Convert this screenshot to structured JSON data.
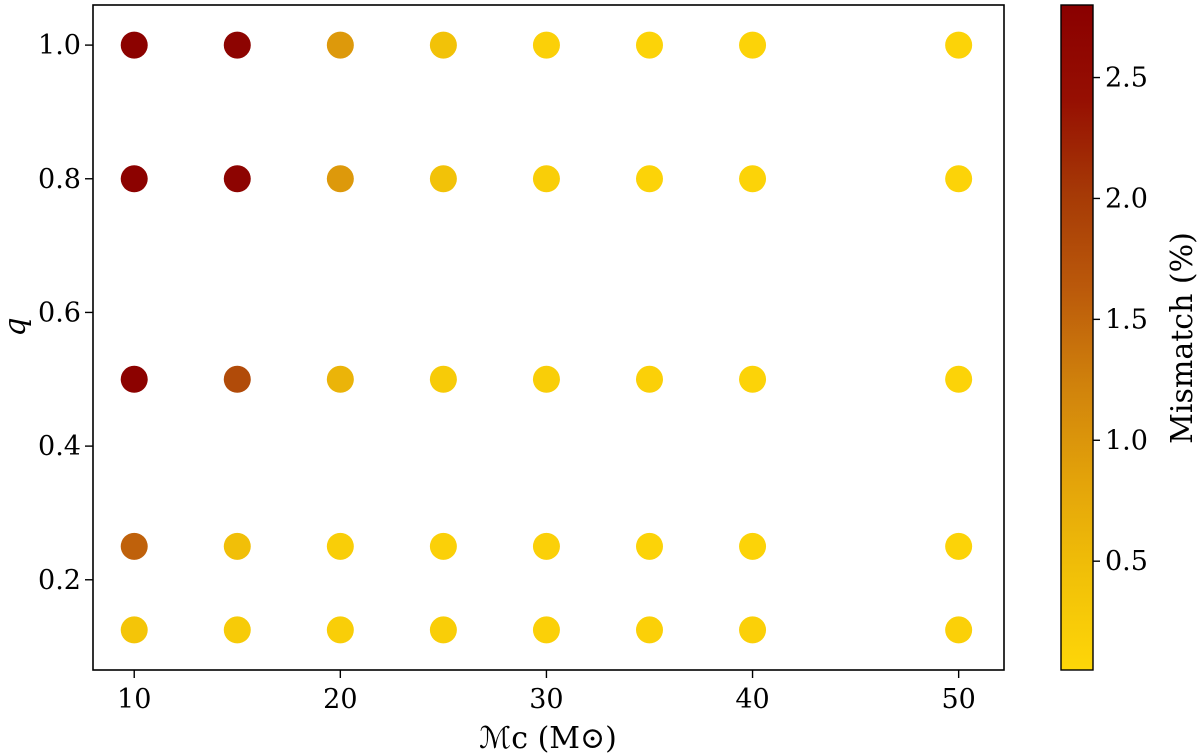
{
  "chart_data": {
    "type": "scatter",
    "title": "",
    "xlabel": "ℳc (M⊙)",
    "ylabel": "q",
    "xlim": [
      8,
      52.2
    ],
    "ylim": [
      0.065,
      1.06
    ],
    "xticks": [
      10,
      20,
      30,
      40,
      50
    ],
    "xtick_labels": [
      "10",
      "20",
      "30",
      "40",
      "50"
    ],
    "yticks": [
      0.2,
      0.4,
      0.6,
      0.8,
      1.0
    ],
    "ytick_labels": [
      "0.2",
      "0.4",
      "0.6",
      "0.8",
      "1.0"
    ],
    "grid": false,
    "colorbar": {
      "label": "Mismatch (%)",
      "range": [
        0.05,
        2.8
      ],
      "ticks": [
        0.5,
        1.0,
        1.5,
        2.0,
        2.5
      ],
      "tick_labels": [
        "0.5",
        "1.0",
        "1.5",
        "2.0",
        "2.5"
      ],
      "colors": [
        "#fed608",
        "#f1c008",
        "#e3a30a",
        "#d0820c",
        "#bb5a0b",
        "#a63a06",
        "#960f02",
        "#8a0000"
      ]
    },
    "points": [
      {
        "x": 10,
        "y": 1.0,
        "mismatch": 2.75
      },
      {
        "x": 15,
        "y": 1.0,
        "mismatch": 2.7
      },
      {
        "x": 20,
        "y": 1.0,
        "mismatch": 0.95
      },
      {
        "x": 25,
        "y": 1.0,
        "mismatch": 0.4
      },
      {
        "x": 30,
        "y": 1.0,
        "mismatch": 0.15
      },
      {
        "x": 35,
        "y": 1.0,
        "mismatch": 0.1
      },
      {
        "x": 40,
        "y": 1.0,
        "mismatch": 0.1
      },
      {
        "x": 50,
        "y": 1.0,
        "mismatch": 0.1
      },
      {
        "x": 10,
        "y": 0.8,
        "mismatch": 2.75
      },
      {
        "x": 15,
        "y": 0.8,
        "mismatch": 2.7
      },
      {
        "x": 20,
        "y": 0.8,
        "mismatch": 0.95
      },
      {
        "x": 25,
        "y": 0.8,
        "mismatch": 0.4
      },
      {
        "x": 30,
        "y": 0.8,
        "mismatch": 0.2
      },
      {
        "x": 35,
        "y": 0.8,
        "mismatch": 0.1
      },
      {
        "x": 40,
        "y": 0.8,
        "mismatch": 0.1
      },
      {
        "x": 50,
        "y": 0.8,
        "mismatch": 0.1
      },
      {
        "x": 10,
        "y": 0.5,
        "mismatch": 2.75
      },
      {
        "x": 15,
        "y": 0.5,
        "mismatch": 1.8
      },
      {
        "x": 20,
        "y": 0.5,
        "mismatch": 0.6
      },
      {
        "x": 25,
        "y": 0.5,
        "mismatch": 0.25
      },
      {
        "x": 30,
        "y": 0.5,
        "mismatch": 0.2
      },
      {
        "x": 35,
        "y": 0.5,
        "mismatch": 0.15
      },
      {
        "x": 40,
        "y": 0.5,
        "mismatch": 0.1
      },
      {
        "x": 50,
        "y": 0.5,
        "mismatch": 0.1
      },
      {
        "x": 10,
        "y": 0.25,
        "mismatch": 1.55
      },
      {
        "x": 15,
        "y": 0.25,
        "mismatch": 0.45
      },
      {
        "x": 20,
        "y": 0.25,
        "mismatch": 0.2
      },
      {
        "x": 25,
        "y": 0.25,
        "mismatch": 0.15
      },
      {
        "x": 30,
        "y": 0.25,
        "mismatch": 0.15
      },
      {
        "x": 35,
        "y": 0.25,
        "mismatch": 0.1
      },
      {
        "x": 40,
        "y": 0.25,
        "mismatch": 0.1
      },
      {
        "x": 50,
        "y": 0.25,
        "mismatch": 0.1
      },
      {
        "x": 10,
        "y": 0.125,
        "mismatch": 0.35
      },
      {
        "x": 15,
        "y": 0.125,
        "mismatch": 0.25
      },
      {
        "x": 20,
        "y": 0.125,
        "mismatch": 0.2
      },
      {
        "x": 25,
        "y": 0.125,
        "mismatch": 0.2
      },
      {
        "x": 30,
        "y": 0.125,
        "mismatch": 0.15
      },
      {
        "x": 35,
        "y": 0.125,
        "mismatch": 0.15
      },
      {
        "x": 40,
        "y": 0.125,
        "mismatch": 0.15
      },
      {
        "x": 50,
        "y": 0.125,
        "mismatch": 0.15
      }
    ]
  }
}
